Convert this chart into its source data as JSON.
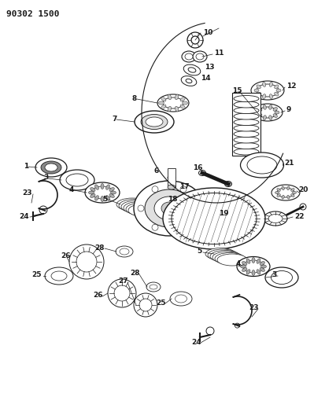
{
  "title": "90302 1500",
  "bg_color": "#ffffff",
  "line_color": "#1a1a1a",
  "fig_width": 3.99,
  "fig_height": 5.33,
  "dpi": 100
}
